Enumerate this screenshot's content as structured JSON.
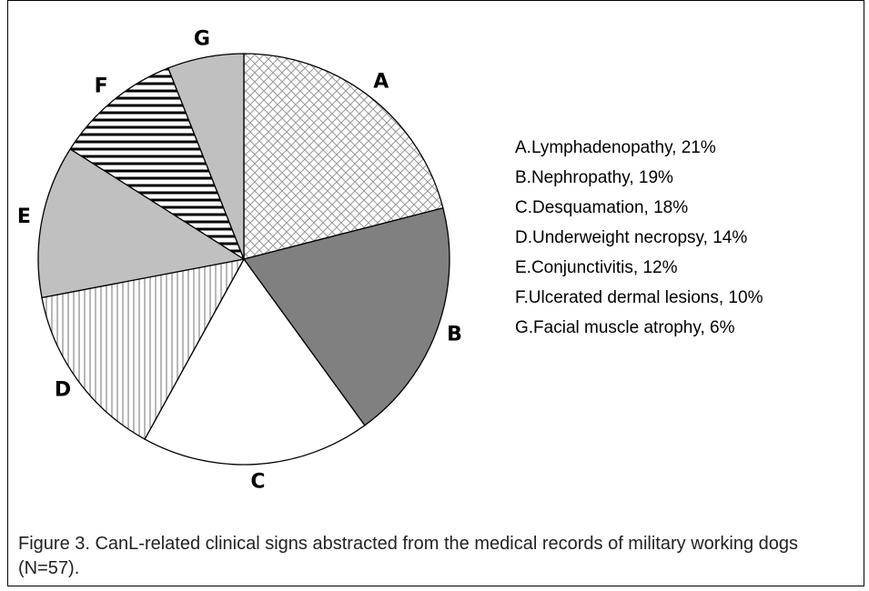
{
  "chart_data": {
    "type": "pie",
    "categories": [
      "A",
      "B",
      "C",
      "D",
      "E",
      "F",
      "G"
    ],
    "values": [
      21,
      19,
      18,
      14,
      12,
      10,
      6
    ],
    "legend_labels": [
      "A.Lymphadenopathy, 21%",
      "B.Nephropathy, 19%",
      "C.Desquamation, 18%",
      "D.Underweight necropsy, 14%",
      "E.Conjunctivitis, 12%",
      "F.Ulcerated dermal lesions, 10%",
      "G.Facial muscle atrophy, 6%"
    ],
    "colors": [
      "url(#p-cross)",
      "#808080",
      "#ffffff",
      "url(#p-vert)",
      "#c0c0c0",
      "url(#p-horiz)",
      "#c0c0c0"
    ],
    "caption": "Figure 3. CanL-related clinical signs abstracted from the medical records of military working dogs (N=57)."
  }
}
